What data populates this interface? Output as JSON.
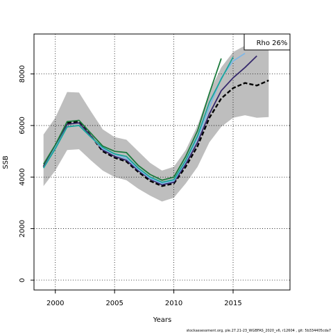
{
  "chart_data": {
    "type": "line",
    "title": "",
    "xlabel": "Years",
    "ylabel": "SSB",
    "xlim": [
      1998.2,
      2019.8
    ],
    "ylim": [
      -380,
      9550
    ],
    "x_ticks": [
      2000,
      2005,
      2010,
      2015
    ],
    "y_ticks": [
      0,
      2000,
      4000,
      6000,
      8000
    ],
    "grid": true,
    "legend": {
      "placement": "top-right",
      "text": "Rho 26%"
    },
    "confidence_band": {
      "x": [
        1999,
        2000,
        2001,
        2002,
        2003,
        2004,
        2005,
        2006,
        2007,
        2008,
        2009,
        2010,
        2011,
        2012,
        2013,
        2014,
        2015,
        2016,
        2017,
        2018
      ],
      "upper": [
        5650,
        6300,
        7300,
        7280,
        6550,
        5850,
        5550,
        5450,
        5000,
        4550,
        4250,
        4400,
        5050,
        6000,
        7300,
        8250,
        8850,
        9100,
        9050,
        9400
      ],
      "lower": [
        3650,
        4250,
        5050,
        5080,
        4650,
        4250,
        4000,
        3880,
        3550,
        3280,
        3050,
        3200,
        3750,
        4400,
        5350,
        5950,
        6300,
        6400,
        6300,
        6330
      ]
    },
    "series": [
      {
        "color": "#000000",
        "style": "dashed",
        "x": [
          1999,
          2000,
          2001,
          2002,
          2003,
          2004,
          2005,
          2006,
          2007,
          2008,
          2009,
          2010,
          2011,
          2012,
          2013,
          2014,
          2015,
          2016,
          2017,
          2018
        ],
        "values": [
          4400,
          5200,
          6100,
          6150,
          5600,
          5000,
          4750,
          4600,
          4200,
          3850,
          3650,
          3750,
          4400,
          5200,
          6300,
          7050,
          7450,
          7650,
          7550,
          7750
        ]
      },
      {
        "color": "#36296c",
        "style": "solid",
        "x": [
          1999,
          2000,
          2001,
          2002,
          2003,
          2004,
          2005,
          2006,
          2007,
          2008,
          2009,
          2010,
          2011,
          2012,
          2013,
          2014,
          2015,
          2016,
          2017
        ],
        "values": [
          4400,
          5200,
          6050,
          6100,
          5600,
          5050,
          4800,
          4650,
          4250,
          3920,
          3700,
          3800,
          4500,
          5350,
          6450,
          7350,
          7850,
          8250,
          8700
        ]
      },
      {
        "color": "#7fb7e6",
        "style": "solid",
        "x": [
          1999,
          2000,
          2001,
          2002,
          2003,
          2004,
          2005,
          2006,
          2007,
          2008,
          2009,
          2010,
          2011,
          2012,
          2013,
          2014,
          2015,
          2016
        ],
        "values": [
          4350,
          5150,
          5950,
          6000,
          5550,
          5100,
          4880,
          4720,
          4300,
          3950,
          3750,
          3850,
          4600,
          5500,
          6700,
          7850,
          8500,
          8800
        ]
      },
      {
        "color": "#1aa598",
        "style": "solid",
        "x": [
          1999,
          2000,
          2001,
          2002,
          2003,
          2004,
          2005,
          2006,
          2007,
          2008,
          2009,
          2010,
          2011,
          2012,
          2013,
          2014,
          2015
        ],
        "values": [
          4350,
          5100,
          5950,
          6000,
          5550,
          5150,
          4900,
          4800,
          4350,
          4000,
          3800,
          3900,
          4650,
          5600,
          6900,
          7800,
          8650
        ]
      },
      {
        "color": "#1b7a3c",
        "style": "solid",
        "x": [
          1999,
          2000,
          2001,
          2002,
          2003,
          2004,
          2005,
          2006,
          2007,
          2008,
          2009,
          2010,
          2011,
          2012,
          2013,
          2014
        ],
        "values": [
          4500,
          5250,
          6150,
          6200,
          5700,
          5200,
          5000,
          4950,
          4450,
          4100,
          3880,
          4000,
          4800,
          5800,
          7250,
          8600
        ]
      }
    ]
  },
  "footer": "stockassessment.org, ple.27.21-23_WGBFAS_2020_v6, r12604 , git: 5b334405cda7"
}
